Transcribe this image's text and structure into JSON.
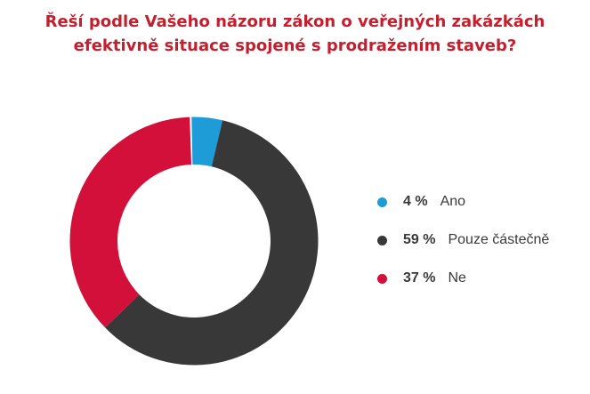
{
  "title_lines": [
    "Řeší podle Vašeho názoru zákon o veřejných zakázkách",
    "efektivně situace spojené s prodražením staveb?"
  ],
  "title_color": "#c2202f",
  "chart_data": {
    "type": "pie",
    "title": "Řeší podle Vašeho názoru zákon o veřejných zakázkách efektivně situace spojené s prodražením staveb?",
    "donut": true,
    "direction": "clockwise",
    "layout": {
      "rotation_deg": -1.1,
      "gap_after_last_deg": 0.9,
      "legend_position": "right"
    },
    "slices": [
      {
        "label": "Ano",
        "value": 4,
        "pct": "4 %",
        "color": "#1e9cd7"
      },
      {
        "label": "Pouze částečně",
        "value": 59,
        "pct": "59 %",
        "color": "#383838"
      },
      {
        "label": "Ne",
        "value": 37,
        "pct": "37 %",
        "color": "#d2103a"
      }
    ]
  }
}
